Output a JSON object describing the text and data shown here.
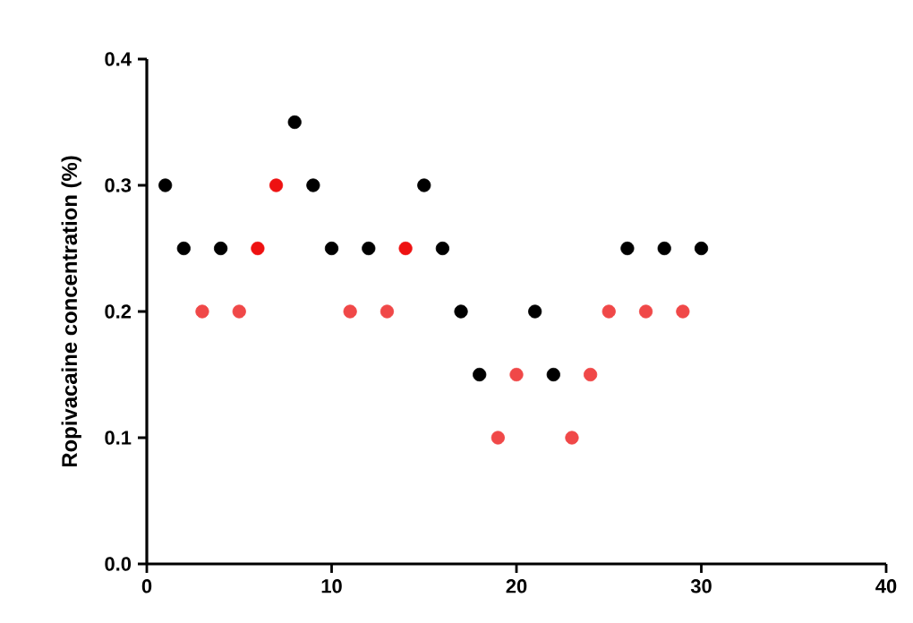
{
  "chart_data": {
    "type": "scatter",
    "ylabel": "Ropivacaine  concentration (%)",
    "x": [
      1,
      2,
      3,
      4,
      5,
      6,
      7,
      8,
      9,
      10,
      11,
      12,
      13,
      14,
      15,
      16,
      17,
      18,
      19,
      20,
      21,
      22,
      23,
      24,
      25,
      26,
      27,
      28,
      29,
      30
    ],
    "values": [
      0.3,
      0.25,
      0.2,
      0.25,
      0.2,
      0.25,
      0.3,
      0.35,
      0.3,
      0.25,
      0.2,
      0.25,
      0.2,
      0.25,
      0.3,
      0.25,
      0.2,
      0.15,
      0.1,
      0.15,
      0.2,
      0.15,
      0.1,
      0.15,
      0.2,
      0.25,
      0.2,
      0.25,
      0.2,
      0.25
    ],
    "colors": [
      "#000000",
      "#000000",
      "#f04848",
      "#000000",
      "#f04848",
      "#ee1111",
      "#ee1111",
      "#000000",
      "#000000",
      "#000000",
      "#f04848",
      "#000000",
      "#f04848",
      "#ee1111",
      "#000000",
      "#000000",
      "#000000",
      "#000000",
      "#f04848",
      "#f04848",
      "#000000",
      "#000000",
      "#f04848",
      "#f04848",
      "#f04848",
      "#000000",
      "#f04848",
      "#000000",
      "#f04848",
      "#000000"
    ],
    "marker": "circle",
    "xlim": [
      0,
      40
    ],
    "xticks": [
      0,
      10,
      20,
      30,
      40
    ],
    "ylim": [
      0,
      0.4
    ],
    "yticks": [
      {
        "value": 0,
        "label": "0.0"
      },
      {
        "value": 0.1,
        "label": "0.1"
      },
      {
        "value": 0.2,
        "label": "0.2"
      },
      {
        "value": 0.3,
        "label": "0.3"
      },
      {
        "value": 0.4,
        "label": "0.4"
      }
    ]
  }
}
